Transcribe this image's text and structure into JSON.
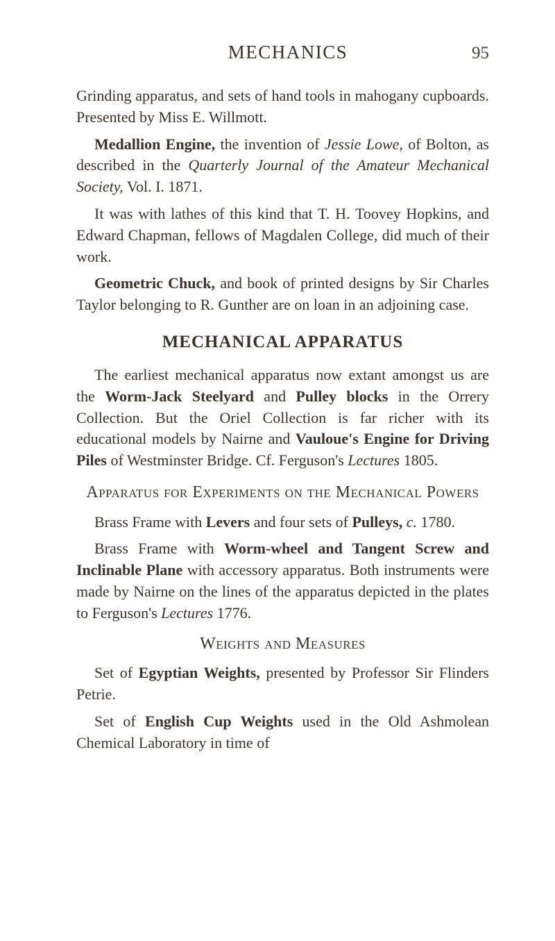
{
  "header": {
    "title": "MECHANICS",
    "page_number": "95"
  },
  "body": {
    "p1_a": "Grinding apparatus, and sets of hand tools in maho­gany cupboards. Presented by Miss E. Willmott.",
    "p2_bold": "Medallion Engine,",
    "p2_a": " the invention of ",
    "p2_italic1": "Jessie Lowe,",
    "p2_b": " of Bolton, as described in the ",
    "p2_italic2": "Quarterly Journal of the Amateur Mechanical Society,",
    "p2_c": " Vol. I. 1871.",
    "p3": "It was with lathes of this kind that T. H. Toovey Hopkins, and Edward Chapman, fellows of Mag­dalen College, did much of their work.",
    "p4_bold": "Geometric Chuck,",
    "p4_a": " and book of printed designs by Sir Charles Taylor belonging to R. Gunther are on loan in an adjoining case.",
    "section1_heading": "MECHANICAL APPARATUS",
    "p5_a": "The earliest mechanical apparatus now extant amongst us are the ",
    "p5_bold1": "Worm-Jack Steelyard",
    "p5_b": " and ",
    "p5_bold2": "Pulley blocks",
    "p5_c": " in the Orrery Collection. But the Oriel Collection is far richer with its educational models by Nairne and ",
    "p5_bold3": "Vauloue's Engine for Driving Piles",
    "p5_d": " of Westminster Bridge. Cf. Ferguson's ",
    "p5_italic1": "Lectures",
    "p5_e": " 1805.",
    "sub1_a": "Apparatus for Experiments on the Mechanical Powers",
    "p6_a": "Brass Frame with ",
    "p6_bold1": "Levers",
    "p6_b": " and four sets of ",
    "p6_bold2": "Pulleys,",
    "p6_c": " ",
    "p6_italic1": "c.",
    "p6_d": " 1780.",
    "p7_a": "Brass Frame with ",
    "p7_bold1": "Worm-wheel and Tangent Screw and Inclinable Plane",
    "p7_b": " with accessory apparatus. Both instruments were made by Nairne on the lines of the apparatus depicted in the plates to Ferguson's ",
    "p7_italic1": "Lectures",
    "p7_c": " 1776.",
    "sub2": "Weights and Measures",
    "p8_a": "Set of ",
    "p8_bold1": "Egyptian Weights,",
    "p8_b": " presented by Pro­fessor Sir Flinders Petrie.",
    "p9_a": "Set of ",
    "p9_bold1": "English Cup Weights",
    "p9_b": " used in the Old Ashmolean Chemical Laboratory in time of"
  },
  "colors": {
    "background": "#ffffff",
    "text": "#3a3228",
    "page_num": "#4a4035"
  }
}
